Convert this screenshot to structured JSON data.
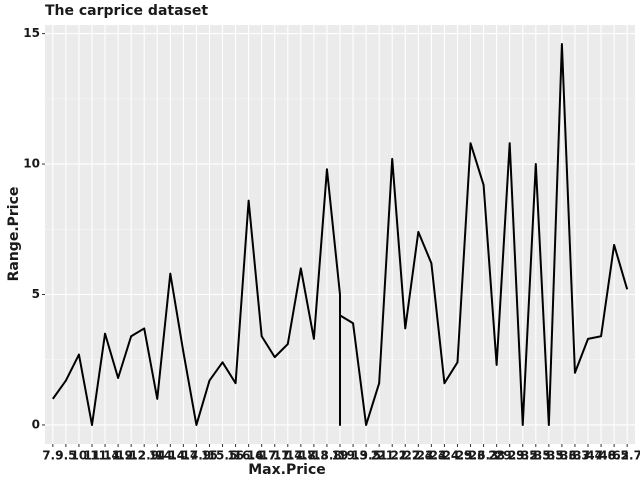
{
  "chart_data": {
    "type": "line",
    "title": "The carprice dataset",
    "x_label": "Max.Price",
    "y_label": "Range.Price",
    "categories": [
      "7.9",
      "9.5",
      "10",
      "11",
      "11.4",
      "11.9",
      "12.2",
      "12.9",
      "14",
      "14.4",
      "14.7",
      "14.9",
      "15",
      "15.5",
      "16",
      "16.4",
      "16.7",
      "17.1",
      "17.4",
      "17.7",
      "18.3",
      "18.8",
      "19",
      "19",
      "19",
      "19.3",
      "19.5",
      "21",
      "21.2",
      "21.7",
      "22.4",
      "23.3",
      "24.4",
      "24.9",
      "25.3",
      "26.3",
      "28",
      "29.3",
      "29.5",
      "32.5",
      "33.3",
      "35.3",
      "36.3",
      "37.7",
      "44.6",
      "48.5",
      "62.7"
    ],
    "values": [
      1.0,
      1.7,
      2.7,
      0,
      3.5,
      1.8,
      3.4,
      3.7,
      1.0,
      5.8,
      2.8,
      0,
      1.7,
      2.4,
      1.6,
      8.6,
      3.4,
      2.6,
      3.1,
      6.0,
      3.3,
      9.8,
      5.0,
      0,
      4.2,
      3.9,
      0,
      1.6,
      10.2,
      3.7,
      7.4,
      6.2,
      1.6,
      2.4,
      10.8,
      9.2,
      2.3,
      10.8,
      0,
      10.0,
      0,
      14.6,
      2.0,
      3.3,
      3.4,
      6.9,
      5.2
    ],
    "color": "#000000",
    "ylim": [
      -0.73,
      15.33
    ],
    "yticks": [
      0,
      5,
      10,
      15
    ],
    "grid": true
  }
}
